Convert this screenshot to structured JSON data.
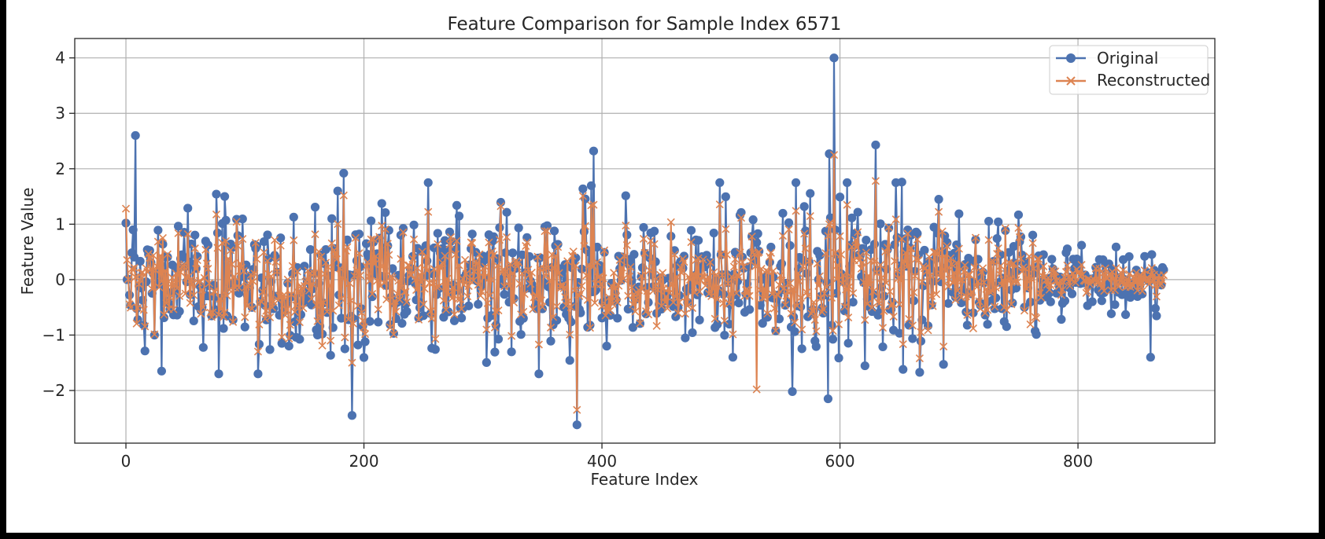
{
  "chart_data": {
    "type": "line",
    "title": "Feature Comparison for Sample Index 6571",
    "xlabel": "Feature Index",
    "ylabel": "Feature Value",
    "xlim": [
      -43,
      915
    ],
    "ylim": [
      -2.95,
      4.35
    ],
    "xticks": [
      0,
      200,
      400,
      600,
      800
    ],
    "yticks": [
      -2,
      -1,
      0,
      1,
      2,
      3,
      4
    ],
    "ytick_labels": [
      "−2",
      "−1",
      "0",
      "1",
      "2",
      "3",
      "4"
    ],
    "grid": true,
    "legend_position": "top-right",
    "n_points": 873,
    "series": [
      {
        "name": "Original",
        "color": "#4c72b0",
        "marker": "circle"
      },
      {
        "name": "Reconstructed",
        "color": "#dd8452",
        "marker": "x"
      }
    ],
    "notable_points": [
      {
        "series": "Original",
        "x": 0,
        "y": 1.02
      },
      {
        "series": "Original",
        "x": 1,
        "y": 0.0
      },
      {
        "series": "Original",
        "x": 8,
        "y": 2.6
      },
      {
        "series": "Original",
        "x": 30,
        "y": -1.65
      },
      {
        "series": "Original",
        "x": 78,
        "y": -1.7
      },
      {
        "series": "Original",
        "x": 83,
        "y": 1.5
      },
      {
        "series": "Original",
        "x": 183,
        "y": 1.92
      },
      {
        "series": "Original",
        "x": 190,
        "y": -2.45
      },
      {
        "series": "Original",
        "x": 379,
        "y": -2.62
      },
      {
        "series": "Original",
        "x": 393,
        "y": 2.32
      },
      {
        "series": "Original",
        "x": 560,
        "y": -2.02
      },
      {
        "series": "Original",
        "x": 590,
        "y": -2.15
      },
      {
        "series": "Original",
        "x": 591,
        "y": 2.27
      },
      {
        "series": "Original",
        "x": 595,
        "y": 4.0
      },
      {
        "series": "Original",
        "x": 630,
        "y": 2.43
      },
      {
        "series": "Original",
        "x": 652,
        "y": 1.76
      },
      {
        "series": "Original",
        "x": 861,
        "y": -1.4
      },
      {
        "series": "Reconstructed",
        "x": 0,
        "y": 1.28
      },
      {
        "series": "Reconstructed",
        "x": 183,
        "y": 1.52
      },
      {
        "series": "Reconstructed",
        "x": 190,
        "y": -1.5
      },
      {
        "series": "Reconstructed",
        "x": 379,
        "y": -2.35
      },
      {
        "series": "Reconstructed",
        "x": 393,
        "y": 1.35
      },
      {
        "series": "Reconstructed",
        "x": 530,
        "y": -1.98
      },
      {
        "series": "Reconstructed",
        "x": 595,
        "y": 2.25
      },
      {
        "series": "Reconstructed",
        "x": 630,
        "y": 1.78
      }
    ]
  }
}
